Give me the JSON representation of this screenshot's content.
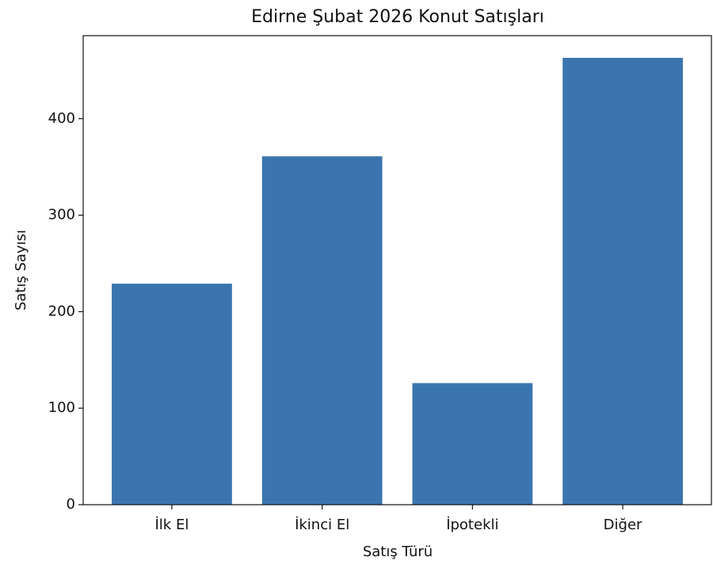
{
  "chart_data": {
    "type": "bar",
    "title": "Edirne Şubat 2026 Konut Satışları",
    "x_label": "Satış Türü",
    "y_label": "Satış Sayısı",
    "categories": [
      "İlk El",
      "İkinci El",
      "İpotekli",
      "Diğer"
    ],
    "values": [
      229,
      361,
      126,
      463
    ],
    "color": "#3b75af",
    "ylim": [
      0,
      486
    ],
    "yticks": [
      0,
      100,
      200,
      300,
      400
    ],
    "grid": false
  }
}
